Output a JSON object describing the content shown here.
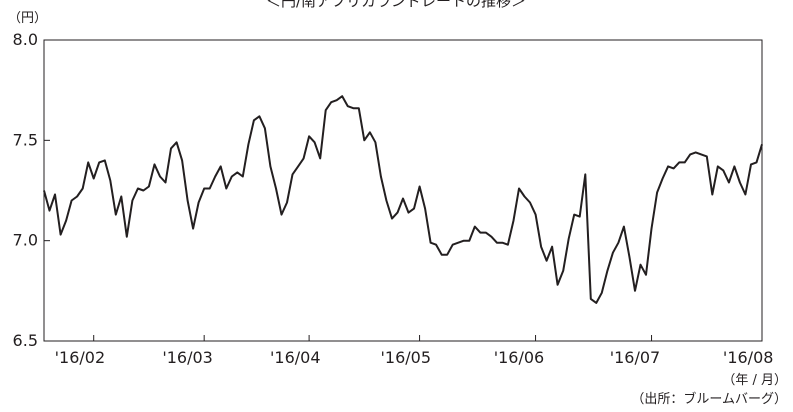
{
  "chart_data": {
    "type": "line",
    "title": "＜円/南アフリカランドレートの推移＞",
    "y_unit_label": "（円）",
    "x_unit_label": "（年 / 月）",
    "source": "（出所：ブルームバーグ）",
    "ylim": [
      6.5,
      8.0
    ],
    "y_ticks": [
      "8.0",
      "7.5",
      "7.0",
      "6.5"
    ],
    "y_tick_values": [
      8.0,
      7.5,
      7.0,
      6.5
    ],
    "x_ticks": [
      "'16/02",
      "'16/03",
      "'16/04",
      "'16/05",
      "'16/06",
      "'16/07",
      "'16/08"
    ],
    "x_tick_index": [
      9,
      29,
      48,
      68,
      89,
      110,
      130
    ],
    "x_label_index": [
      6.5,
      26,
      45.5,
      65.5,
      86,
      107,
      127.5
    ],
    "grid": false,
    "series": [
      {
        "values": [
          7.25,
          7.15,
          7.23,
          7.03,
          7.1,
          7.2,
          7.22,
          7.26,
          7.39,
          7.31,
          7.39,
          7.4,
          7.3,
          7.13,
          7.22,
          7.02,
          7.2,
          7.26,
          7.25,
          7.27,
          7.38,
          7.32,
          7.29,
          7.46,
          7.49,
          7.4,
          7.2,
          7.06,
          7.19,
          7.26,
          7.26,
          7.32,
          7.37,
          7.26,
          7.32,
          7.34,
          7.32,
          7.48,
          7.6,
          7.62,
          7.56,
          7.37,
          7.26,
          7.13,
          7.19,
          7.33,
          7.37,
          7.41,
          7.52,
          7.49,
          7.41,
          7.65,
          7.69,
          7.7,
          7.72,
          7.67,
          7.66,
          7.66,
          7.5,
          7.54,
          7.49,
          7.32,
          7.2,
          7.11,
          7.14,
          7.21,
          7.14,
          7.16,
          7.27,
          7.16,
          6.99,
          6.98,
          6.93,
          6.93,
          6.98,
          6.99,
          7.0,
          7.0,
          7.07,
          7.04,
          7.04,
          7.02,
          6.99,
          6.99,
          6.98,
          7.1,
          7.26,
          7.22,
          7.19,
          7.13,
          6.97,
          6.9,
          6.97,
          6.78,
          6.85,
          7.01,
          7.13,
          7.12,
          7.33,
          6.71,
          6.69,
          6.74,
          6.85,
          6.94,
          6.99,
          7.07,
          6.92,
          6.75,
          6.88,
          6.83,
          7.06,
          7.24,
          7.31,
          7.37,
          7.36,
          7.39,
          7.39,
          7.43,
          7.44,
          7.43,
          7.42,
          7.23,
          7.37,
          7.35,
          7.29,
          7.37,
          7.29,
          7.23,
          7.38,
          7.39,
          7.48
        ]
      }
    ]
  }
}
